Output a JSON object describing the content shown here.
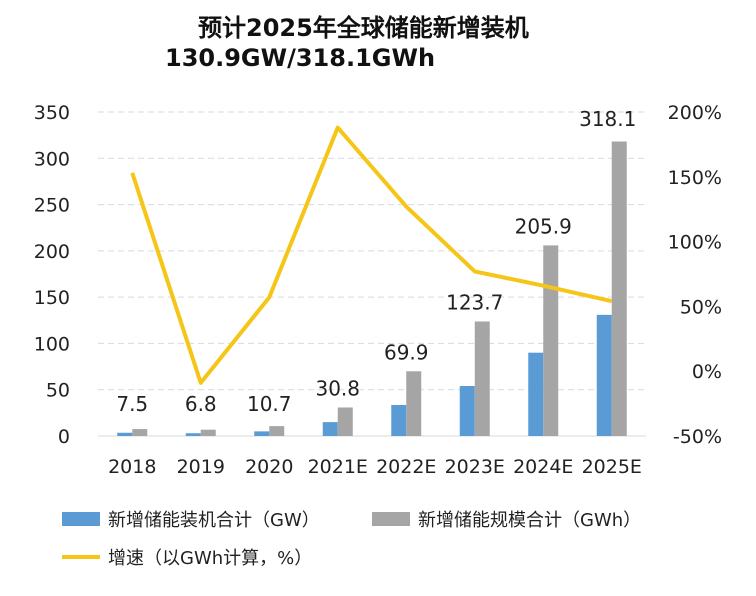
{
  "chart_data": {
    "type": "bar+line",
    "title": "预计2025年全球储能新增装机",
    "subtitle": "130.9GW/318.1GWh",
    "categories": [
      "2018",
      "2019",
      "2020",
      "2021E",
      "2022E",
      "2023E",
      "2024E",
      "2025E"
    ],
    "series": [
      {
        "name": "新增储能装机合计（GW）",
        "type": "bar",
        "axis": "left",
        "color": "#5B9BD5",
        "values": [
          3.5,
          3,
          5,
          15,
          33.5,
          54,
          90,
          130.9
        ]
      },
      {
        "name": "新增储能规模合计（GWh）",
        "type": "bar",
        "axis": "left",
        "color": "#A5A5A5",
        "values": [
          7.5,
          6.8,
          10.7,
          30.8,
          69.9,
          123.7,
          205.9,
          318.1
        ],
        "data_labels": [
          "7.5",
          "6.8",
          "10.7",
          "30.8",
          "69.9",
          "123.7",
          "205.9",
          "318.1"
        ]
      },
      {
        "name": "增速（以GWh计算，%）",
        "type": "line",
        "axis": "right",
        "color": "#F5C518",
        "values": [
          153,
          -9,
          57,
          188,
          127,
          77,
          66,
          54
        ]
      }
    ],
    "left_axis": {
      "ylim": [
        0,
        350
      ],
      "ticks": [
        "0",
        "50",
        "100",
        "150",
        "200",
        "250",
        "300",
        "350"
      ]
    },
    "right_axis": {
      "ylim": [
        -50,
        200
      ],
      "ticks": [
        "-50%",
        "0%",
        "50%",
        "100%",
        "150%",
        "200%"
      ]
    },
    "grid": "dashed horizontal",
    "legend_position": "bottom"
  }
}
